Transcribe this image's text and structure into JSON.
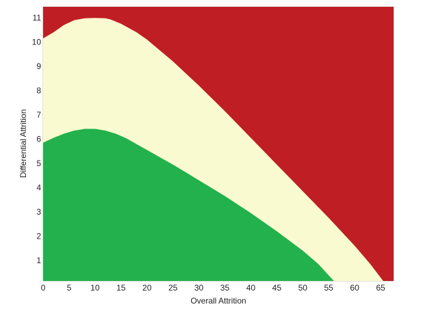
{
  "chart_data": {
    "type": "area",
    "title": "",
    "xlabel": "Overall Attrition",
    "ylabel": "Differential Attrition",
    "xlim": [
      0,
      67.5
    ],
    "ylim": [
      0.15,
      11.45
    ],
    "x_ticks": [
      0,
      5,
      10,
      15,
      20,
      25,
      30,
      35,
      40,
      45,
      50,
      55,
      60,
      65
    ],
    "y_ticks": [
      1,
      2,
      3,
      4,
      5,
      6,
      7,
      8,
      9,
      10,
      11
    ],
    "grid": false,
    "legend": "none",
    "series": [
      {
        "color": "#bf1e24",
        "values_are": "region above upper boundary (fills to top of plot)"
      },
      {
        "color": "#fafad0",
        "values_are": "region between lower and upper boundary",
        "boundary_x": [
          0,
          2,
          4,
          6,
          8,
          10,
          12,
          13,
          15,
          18,
          20,
          25,
          30,
          35,
          40,
          45,
          50,
          55,
          60,
          63,
          65.5
        ],
        "boundary_y": [
          10.15,
          10.4,
          10.7,
          10.9,
          10.98,
          10.99,
          10.98,
          10.93,
          10.75,
          10.4,
          10.1,
          9.2,
          8.2,
          7.15,
          6.05,
          4.95,
          3.85,
          2.75,
          1.6,
          0.85,
          0.15
        ]
      },
      {
        "color": "#22b14c",
        "values_are": "region below lower boundary (fills to bottom of plot)",
        "boundary_x": [
          0,
          2,
          4,
          6,
          8,
          10,
          12,
          14,
          16,
          20,
          25,
          30,
          35,
          40,
          45,
          50,
          53,
          56
        ],
        "boundary_y": [
          5.85,
          6.05,
          6.22,
          6.35,
          6.42,
          6.42,
          6.35,
          6.22,
          6.03,
          5.55,
          4.95,
          4.3,
          3.65,
          2.95,
          2.2,
          1.4,
          0.85,
          0.15
        ]
      }
    ]
  }
}
